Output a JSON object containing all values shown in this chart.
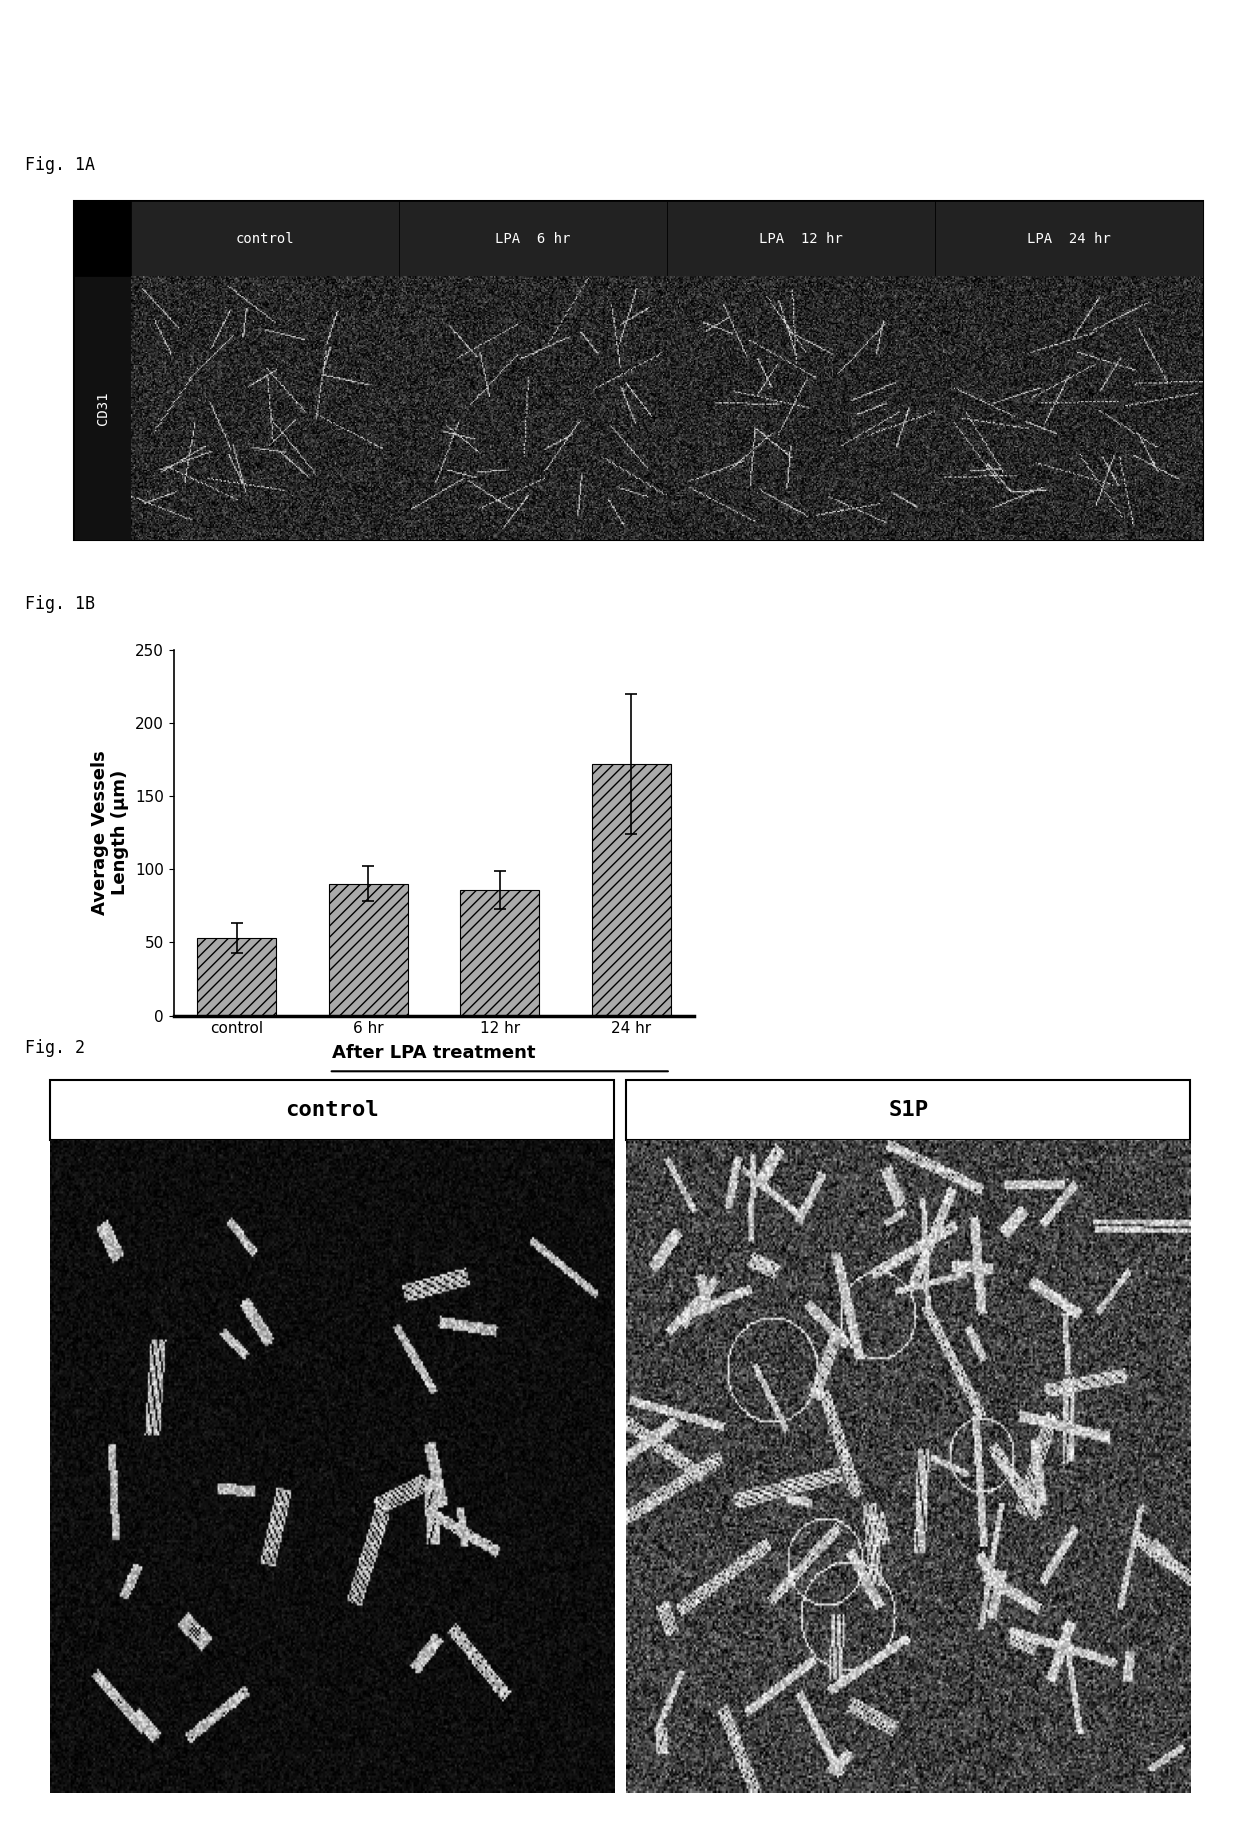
{
  "fig1A_label": "Fig. 1A",
  "fig1B_label": "Fig. 1B",
  "fig2_label": "Fig. 2",
  "fig1A_col_labels": [
    "control",
    "LPA  6 hr",
    "LPA  12 hr",
    "LPA  24 hr"
  ],
  "fig1A_row_label": "CD31",
  "bar_values": [
    53,
    90,
    86,
    172
  ],
  "bar_errors": [
    10,
    12,
    13,
    48
  ],
  "bar_categories": [
    "control",
    "6 hr",
    "12 hr",
    "24 hr"
  ],
  "ylabel": "Average Vessels\nLength (μm)",
  "xlabel": "After LPA treatment",
  "ylim": [
    0,
    250
  ],
  "yticks": [
    0,
    50,
    100,
    150,
    200,
    250
  ],
  "bar_color": "#aaaaaa",
  "bar_hatch": "///",
  "fig2_labels": [
    "control",
    "S1P"
  ],
  "bg_color": "#ffffff",
  "fig_label_fontsize": 12,
  "bar_label_fontsize": 12,
  "axis_label_fontsize": 13
}
